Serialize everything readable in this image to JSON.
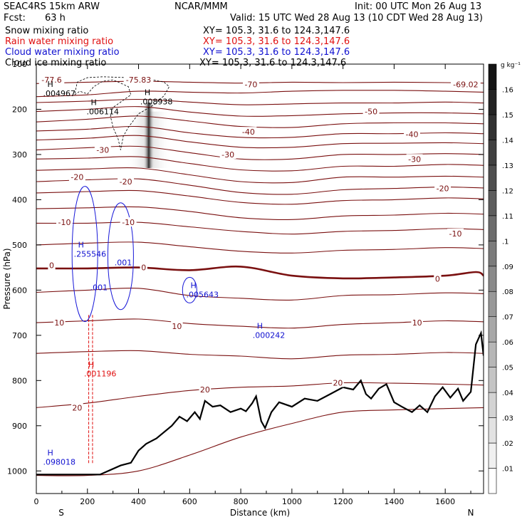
{
  "header": {
    "run": "SEAC4RS 15km ARW",
    "center": "NCAR/MMM",
    "init": "Init: 00 UTC Mon 26 Aug 13",
    "fcst_label": "Fcst:",
    "fcst_value": "63 h",
    "valid": "Valid: 15 UTC Wed 28 Aug 13 (10 CDT Wed 28 Aug 13)",
    "fields": [
      {
        "name": "Snow mixing ratio",
        "color": "#000000",
        "xy": "XY= 105.3, 31.6 to 124.3,147.6"
      },
      {
        "name": "Rain water mixing ratio",
        "color": "#e01010",
        "xy": "XY= 105.3, 31.6 to 124.3,147.6"
      },
      {
        "name": "Cloud water mixing ratio",
        "color": "#1010d0",
        "xy": "XY= 105.3, 31.6 to 124.3,147.6"
      },
      {
        "name": "Cloud ice mixing ratio",
        "color": "#000000",
        "xy": "XY= 105.3, 31.6 to 124.3,147.6"
      }
    ]
  },
  "chart_data": {
    "type": "contour cross-section",
    "xlabel": "Distance (km)",
    "ylabel": "Pressure (hPa)",
    "xlim": [
      0,
      1750
    ],
    "ylim": [
      1050,
      100
    ],
    "x_ticks": [
      0,
      200,
      400,
      600,
      800,
      1000,
      1200,
      1400,
      1600
    ],
    "y_ticks": [
      200,
      300,
      400,
      500,
      600,
      700,
      800,
      900,
      1000
    ],
    "y_tick_labels": [
      "200",
      "300",
      "400",
      "500",
      "600",
      "700",
      "800",
      "900",
      "1000"
    ],
    "top_tick_label": "100",
    "left_end": "S",
    "right_end": "N",
    "colorbar": {
      "units": "g kg⁻¹",
      "levels": [
        ".01",
        ".02",
        ".03",
        ".04",
        ".05",
        ".06",
        ".07",
        ".08",
        ".09",
        ".1",
        ".11",
        ".12",
        ".13",
        ".14",
        ".15",
        ".16"
      ]
    },
    "temperature_labels": [
      {
        "text": "-77.6",
        "x": 60,
        "p": 135
      },
      {
        "text": "-75.83",
        "x": 400,
        "p": 135
      },
      {
        "text": "-70",
        "x": 840,
        "p": 145
      },
      {
        "text": "-69.02",
        "x": 1680,
        "p": 145
      },
      {
        "text": "-50",
        "x": 1310,
        "p": 205
      },
      {
        "text": "-40",
        "x": 830,
        "p": 250
      },
      {
        "text": "-40",
        "x": 1470,
        "p": 255
      },
      {
        "text": "-30",
        "x": 260,
        "p": 290
      },
      {
        "text": "-30",
        "x": 750,
        "p": 300
      },
      {
        "text": "-30",
        "x": 1480,
        "p": 310
      },
      {
        "text": "-20",
        "x": 160,
        "p": 350
      },
      {
        "text": "-20",
        "x": 350,
        "p": 360
      },
      {
        "text": "-20",
        "x": 1590,
        "p": 375
      },
      {
        "text": "-10",
        "x": 110,
        "p": 450
      },
      {
        "text": "-10",
        "x": 360,
        "p": 450
      },
      {
        "text": "-10",
        "x": 1640,
        "p": 475
      },
      {
        "text": "0",
        "x": 60,
        "p": 545
      },
      {
        "text": "0",
        "x": 420,
        "p": 550
      },
      {
        "text": "0",
        "x": 1570,
        "p": 575
      },
      {
        "text": "10",
        "x": 90,
        "p": 672
      },
      {
        "text": "10",
        "x": 550,
        "p": 680
      },
      {
        "text": "10",
        "x": 1490,
        "p": 672
      },
      {
        "text": "20",
        "x": 160,
        "p": 860
      },
      {
        "text": "20",
        "x": 660,
        "p": 820
      },
      {
        "text": "20",
        "x": 1180,
        "p": 805
      }
    ],
    "temperature_contours": [
      {
        "level": -75,
        "x": [
          0,
          200,
          400,
          600,
          800,
          1000,
          1200,
          1400,
          1600,
          1750
        ],
        "p": [
          143,
          140,
          138,
          140,
          142,
          140,
          141,
          140,
          141,
          142
        ]
      },
      {
        "level": -70,
        "x": [
          0,
          200,
          400,
          600,
          800,
          1000,
          1200,
          1400,
          1600,
          1750
        ],
        "p": [
          172,
          168,
          160,
          162,
          164,
          160,
          158,
          158,
          160,
          162
        ]
      },
      {
        "level": -65,
        "x": [
          0,
          200,
          400,
          600,
          800,
          1000,
          1200,
          1400,
          1600,
          1750
        ],
        "p": [
          185,
          182,
          178,
          184,
          190,
          188,
          186,
          186,
          184,
          186
        ]
      },
      {
        "level": -60,
        "x": [
          0,
          200,
          400,
          600,
          800,
          1000,
          1200,
          1400,
          1600,
          1750
        ],
        "p": [
          205,
          200,
          194,
          206,
          215,
          214,
          210,
          208,
          208,
          210
        ]
      },
      {
        "level": -55,
        "x": [
          0,
          200,
          400,
          600,
          800,
          1000,
          1200,
          1400,
          1600,
          1750
        ],
        "p": [
          228,
          222,
          215,
          226,
          238,
          240,
          232,
          230,
          230,
          232
        ]
      },
      {
        "level": -50,
        "x": [
          0,
          200,
          400,
          600,
          800,
          1000,
          1200,
          1400,
          1600,
          1750
        ],
        "p": [
          248,
          244,
          238,
          252,
          262,
          262,
          254,
          254,
          252,
          254
        ]
      },
      {
        "level": -45,
        "x": [
          0,
          200,
          400,
          600,
          800,
          1000,
          1200,
          1400,
          1600,
          1750
        ],
        "p": [
          268,
          264,
          258,
          272,
          284,
          284,
          276,
          275,
          274,
          276
        ]
      },
      {
        "level": -40,
        "x": [
          0,
          200,
          400,
          600,
          800,
          1000,
          1200,
          1400,
          1600,
          1750
        ],
        "p": [
          290,
          285,
          282,
          296,
          310,
          310,
          300,
          300,
          298,
          300
        ]
      },
      {
        "level": -35,
        "x": [
          0,
          200,
          400,
          600,
          800,
          1000,
          1200,
          1400,
          1600,
          1750
        ],
        "p": [
          310,
          308,
          305,
          320,
          334,
          336,
          326,
          326,
          322,
          324
        ]
      },
      {
        "level": -30,
        "x": [
          0,
          200,
          400,
          600,
          800,
          1000,
          1200,
          1400,
          1600,
          1750
        ],
        "p": [
          335,
          332,
          330,
          345,
          360,
          362,
          350,
          350,
          348,
          350
        ]
      },
      {
        "level": -25,
        "x": [
          0,
          200,
          400,
          600,
          800,
          1000,
          1200,
          1400,
          1600,
          1750
        ],
        "p": [
          360,
          356,
          354,
          368,
          384,
          388,
          378,
          375,
          372,
          374
        ]
      },
      {
        "level": -20,
        "x": [
          0,
          200,
          400,
          600,
          800,
          1000,
          1200,
          1400,
          1600,
          1750
        ],
        "p": [
          385,
          382,
          380,
          392,
          406,
          410,
          402,
          400,
          396,
          398
        ]
      },
      {
        "level": -15,
        "x": [
          0,
          200,
          400,
          600,
          800,
          1000,
          1200,
          1400,
          1600,
          1750
        ],
        "p": [
          420,
          418,
          416,
          426,
          440,
          444,
          436,
          434,
          430,
          432
        ]
      },
      {
        "level": -10,
        "x": [
          0,
          200,
          400,
          600,
          800,
          1000,
          1200,
          1400,
          1600,
          1750
        ],
        "p": [
          452,
          452,
          450,
          460,
          470,
          476,
          470,
          468,
          464,
          466
        ]
      },
      {
        "level": -5,
        "x": [
          0,
          200,
          400,
          600,
          800,
          1000,
          1200,
          1400,
          1600,
          1750
        ],
        "p": [
          500,
          496,
          494,
          504,
          514,
          518,
          512,
          510,
          506,
          508
        ]
      },
      {
        "level": 0,
        "x": [
          0,
          200,
          400,
          600,
          800,
          1000,
          1200,
          1400,
          1600,
          1720,
          1750
        ],
        "p": [
          552,
          552,
          550,
          556,
          548,
          568,
          574,
          572,
          568,
          560,
          568
        ]
      },
      {
        "level": 5,
        "x": [
          0,
          200,
          400,
          600,
          800,
          1000,
          1200,
          1400,
          1600,
          1750
        ],
        "p": [
          605,
          600,
          596,
          612,
          618,
          622,
          612,
          610,
          606,
          608
        ]
      },
      {
        "level": 10,
        "x": [
          0,
          200,
          400,
          600,
          800,
          1000,
          1200,
          1400,
          1600,
          1750
        ],
        "p": [
          672,
          668,
          664,
          674,
          680,
          684,
          676,
          672,
          668,
          670
        ]
      },
      {
        "level": 15,
        "x": [
          0,
          200,
          400,
          600,
          800,
          1000,
          1200,
          1400,
          1600,
          1750
        ],
        "p": [
          740,
          736,
          734,
          742,
          746,
          752,
          744,
          742,
          738,
          740
        ]
      },
      {
        "level": 20,
        "x": [
          0,
          200,
          400,
          600,
          800,
          1000,
          1200,
          1400,
          1600,
          1750
        ],
        "p": [
          860,
          850,
          835,
          822,
          815,
          812,
          805,
          806,
          808,
          810
        ]
      },
      {
        "level": 25,
        "x": [
          0,
          200,
          400,
          600,
          800,
          1000,
          1200,
          1400,
          1600,
          1750
        ],
        "p": [
          1010,
          1010,
          1000,
          965,
          925,
          895,
          870,
          865,
          862,
          860
        ]
      }
    ],
    "terrain": {
      "x": [
        0,
        120,
        250,
        330,
        370,
        400,
        430,
        470,
        530,
        560,
        590,
        620,
        640,
        660,
        690,
        720,
        760,
        800,
        820,
        845,
        860,
        880,
        895,
        920,
        950,
        1000,
        1050,
        1100,
        1150,
        1200,
        1240,
        1270,
        1290,
        1310,
        1340,
        1370,
        1400,
        1430,
        1470,
        1500,
        1530,
        1560,
        1590,
        1620,
        1650,
        1670,
        1700,
        1720,
        1740,
        1750
      ],
      "p": [
        1008,
        1008,
        1008,
        988,
        982,
        955,
        940,
        928,
        900,
        880,
        890,
        870,
        885,
        845,
        858,
        855,
        870,
        862,
        868,
        850,
        835,
        890,
        905,
        870,
        848,
        858,
        840,
        845,
        830,
        815,
        820,
        800,
        830,
        840,
        818,
        808,
        848,
        858,
        870,
        855,
        870,
        835,
        815,
        838,
        818,
        845,
        825,
        720,
        695,
        745
      ]
    },
    "freezing_level_smooth": true,
    "maxima": [
      {
        "field": "Cloud ice mixing ratio",
        "label": "H",
        "value": ".004967",
        "x": 60,
        "p": 160
      },
      {
        "field": "Cloud ice mixing ratio",
        "label": "H",
        "value": ".006114",
        "x": 230,
        "p": 200
      },
      {
        "field": "Cloud ice mixing ratio",
        "label": "H",
        "value": ".008938",
        "x": 440,
        "p": 178
      },
      {
        "field": "Cloud water mixing ratio",
        "label": "H",
        "value": ".255546",
        "x": 180,
        "p": 515
      },
      {
        "field": "Cloud water mixing ratio",
        "label": "H",
        "value": ".005643",
        "x": 620,
        "p": 605
      },
      {
        "field": "Cloud water mixing ratio",
        "label": "H",
        "value": ".000242",
        "x": 880,
        "p": 695
      },
      {
        "field": "Cloud water mixing ratio",
        "label": "H",
        "value": ".098018",
        "x": 60,
        "p": 975
      },
      {
        "field": "Rain water mixing ratio",
        "label": "H",
        "value": ".001196",
        "x": 220,
        "p": 780
      }
    ],
    "contour_labels": [
      {
        "field": "Cloud water mixing ratio",
        "text": ".001",
        "x": 245,
        "p": 600
      },
      {
        "field": "Cloud water mixing ratio",
        "text": ".001",
        "x": 340,
        "p": 545
      }
    ],
    "snow_plume": {
      "x": 440,
      "p_top": 185,
      "p_bottom": 330,
      "max": ".16"
    }
  }
}
